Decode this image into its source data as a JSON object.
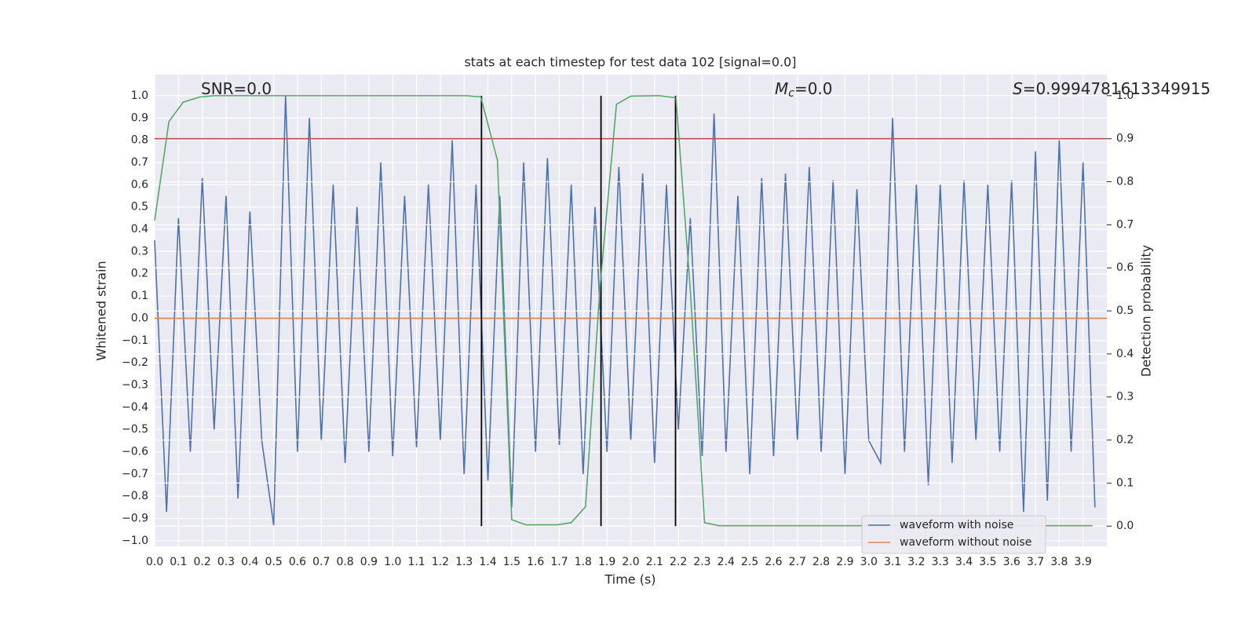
{
  "chart_data": {
    "type": "line",
    "title": "stats at each timestep for test data 102 [signal=0.0]",
    "xlabel": "Time (s)",
    "ylabel": "Whitened strain",
    "y2label": "Detection probability",
    "xlim": [
      0,
      4.0
    ],
    "ylim": [
      -1.025,
      1.095
    ],
    "y2lim": [
      -0.047,
      1.049
    ],
    "xticks": [
      {
        "value": 0.0,
        "label": "0.0"
      },
      0.1,
      0.2,
      0.3,
      0.4,
      0.5,
      0.6,
      0.7,
      0.8,
      0.9,
      {
        "value": 1.0,
        "label": "1.0"
      },
      1.1,
      1.2,
      1.3,
      1.4,
      1.5,
      1.6,
      1.7,
      1.8,
      1.9,
      {
        "value": 2.0,
        "label": "2.0"
      },
      2.1,
      2.2,
      2.3,
      2.4,
      2.5,
      2.6,
      2.7,
      2.8,
      2.9,
      {
        "value": 3.0,
        "label": "3.0"
      },
      3.1,
      3.2,
      3.3,
      3.4,
      3.5,
      3.6,
      3.7,
      3.8,
      3.9
    ],
    "yticks": [
      {
        "value": -1.0,
        "label": "−1.0"
      },
      {
        "value": -0.9,
        "label": "−0.9"
      },
      {
        "value": -0.8,
        "label": "−0.8"
      },
      {
        "value": -0.7,
        "label": "−0.7"
      },
      {
        "value": -0.6,
        "label": "−0.6"
      },
      {
        "value": -0.5,
        "label": "−0.5"
      },
      {
        "value": -0.4,
        "label": "−0.4"
      },
      {
        "value": -0.3,
        "label": "−0.3"
      },
      {
        "value": -0.2,
        "label": "−0.2"
      },
      {
        "value": -0.1,
        "label": "−0.1"
      },
      {
        "value": 0.0,
        "label": "0.0"
      },
      0.1,
      0.2,
      0.3,
      0.4,
      0.5,
      0.6,
      0.7,
      0.8,
      0.9,
      {
        "value": 1.0,
        "label": "1.0"
      }
    ],
    "y2ticks": [
      {
        "value": 0.0,
        "label": "0.0"
      },
      0.1,
      0.2,
      0.3,
      0.4,
      0.5,
      0.6,
      0.7,
      0.8,
      0.9,
      {
        "value": 1.0,
        "label": "1.0"
      }
    ],
    "grid": true,
    "legend": "lower right",
    "series": [
      {
        "name": "waveform with noise",
        "color": "#4c72b0",
        "axis": "y",
        "x": [
          0.0,
          0.05,
          0.1,
          0.15,
          0.2,
          0.25,
          0.3,
          0.35,
          0.4,
          0.45,
          0.5,
          0.55,
          0.6,
          0.65,
          0.7,
          0.75,
          0.8,
          0.85,
          0.9,
          0.95,
          1.0,
          1.05,
          1.1,
          1.15,
          1.2,
          1.25,
          1.3,
          1.35,
          1.4,
          1.45,
          1.5,
          1.55,
          1.6,
          1.65,
          1.7,
          1.75,
          1.8,
          1.85,
          1.9,
          1.95,
          2.0,
          2.05,
          2.1,
          2.15,
          2.2,
          2.25,
          2.3,
          2.35,
          2.4,
          2.45,
          2.5,
          2.55,
          2.6,
          2.65,
          2.7,
          2.75,
          2.8,
          2.85,
          2.9,
          2.95,
          3.0,
          3.05,
          3.1,
          3.15,
          3.2,
          3.25,
          3.3,
          3.35,
          3.4,
          3.45,
          3.5,
          3.55,
          3.6,
          3.65,
          3.7,
          3.75,
          3.8,
          3.85,
          3.9,
          3.95
        ],
        "values": [
          0.35,
          -0.87,
          0.45,
          -0.6,
          0.63,
          -0.5,
          0.55,
          -0.81,
          0.48,
          -0.55,
          -0.93,
          1.0,
          -0.6,
          0.9,
          -0.55,
          0.6,
          -0.65,
          0.5,
          -0.6,
          0.7,
          -0.62,
          0.55,
          -0.58,
          0.6,
          -0.55,
          0.8,
          -0.7,
          0.6,
          -0.73,
          0.55,
          -0.85,
          0.7,
          -0.6,
          0.72,
          -0.57,
          0.6,
          -0.7,
          0.5,
          -0.6,
          0.68,
          -0.55,
          0.65,
          -0.65,
          0.6,
          -0.5,
          0.45,
          -0.62,
          0.92,
          -0.6,
          0.55,
          -0.7,
          0.63,
          -0.62,
          0.65,
          -0.55,
          0.68,
          -0.6,
          0.62,
          -0.7,
          0.58,
          -0.55,
          -0.65,
          0.9,
          -0.6,
          0.6,
          -0.75,
          0.6,
          -0.65,
          0.62,
          -0.55,
          0.6,
          -0.6,
          0.62,
          -0.87,
          0.75,
          -0.82,
          0.8,
          -0.6,
          0.7,
          -0.85
        ]
      },
      {
        "name": "waveform without noise",
        "color": "#dd8452",
        "axis": "y",
        "x": [
          0.0,
          4.0
        ],
        "values": [
          0.0,
          0.0
        ]
      }
    ],
    "probability": {
      "color": "#55a868",
      "axis": "y2",
      "x": [
        0.0,
        0.06,
        0.12,
        0.19,
        0.25,
        1.31,
        1.37,
        1.44,
        1.5,
        1.56,
        1.69,
        1.75,
        1.81,
        1.87,
        1.94,
        2.0,
        2.12,
        2.19,
        2.25,
        2.31,
        2.37,
        3.94
      ],
      "values": [
        0.71,
        0.94,
        0.985,
        0.997,
        1.0,
        1.0,
        0.997,
        0.85,
        0.015,
        0.003,
        0.003,
        0.008,
        0.045,
        0.55,
        0.98,
        0.999,
        1.0,
        0.995,
        0.55,
        0.008,
        0.001,
        0.001
      ]
    },
    "threshold": {
      "value": 0.9,
      "color": "#c44e52",
      "axis": "y2"
    },
    "vlines": {
      "x": [
        1.373,
        1.875,
        2.188
      ],
      "ymin": 0,
      "ymax": 1,
      "color": "#000000",
      "axis": "y2"
    },
    "annotations": [
      {
        "text": "SNR=0.0"
      },
      {
        "italic": "M",
        "sub": "c",
        "text": "=0.0"
      },
      {
        "italic": "S",
        "text": "=0.9994781613349915"
      }
    ]
  }
}
